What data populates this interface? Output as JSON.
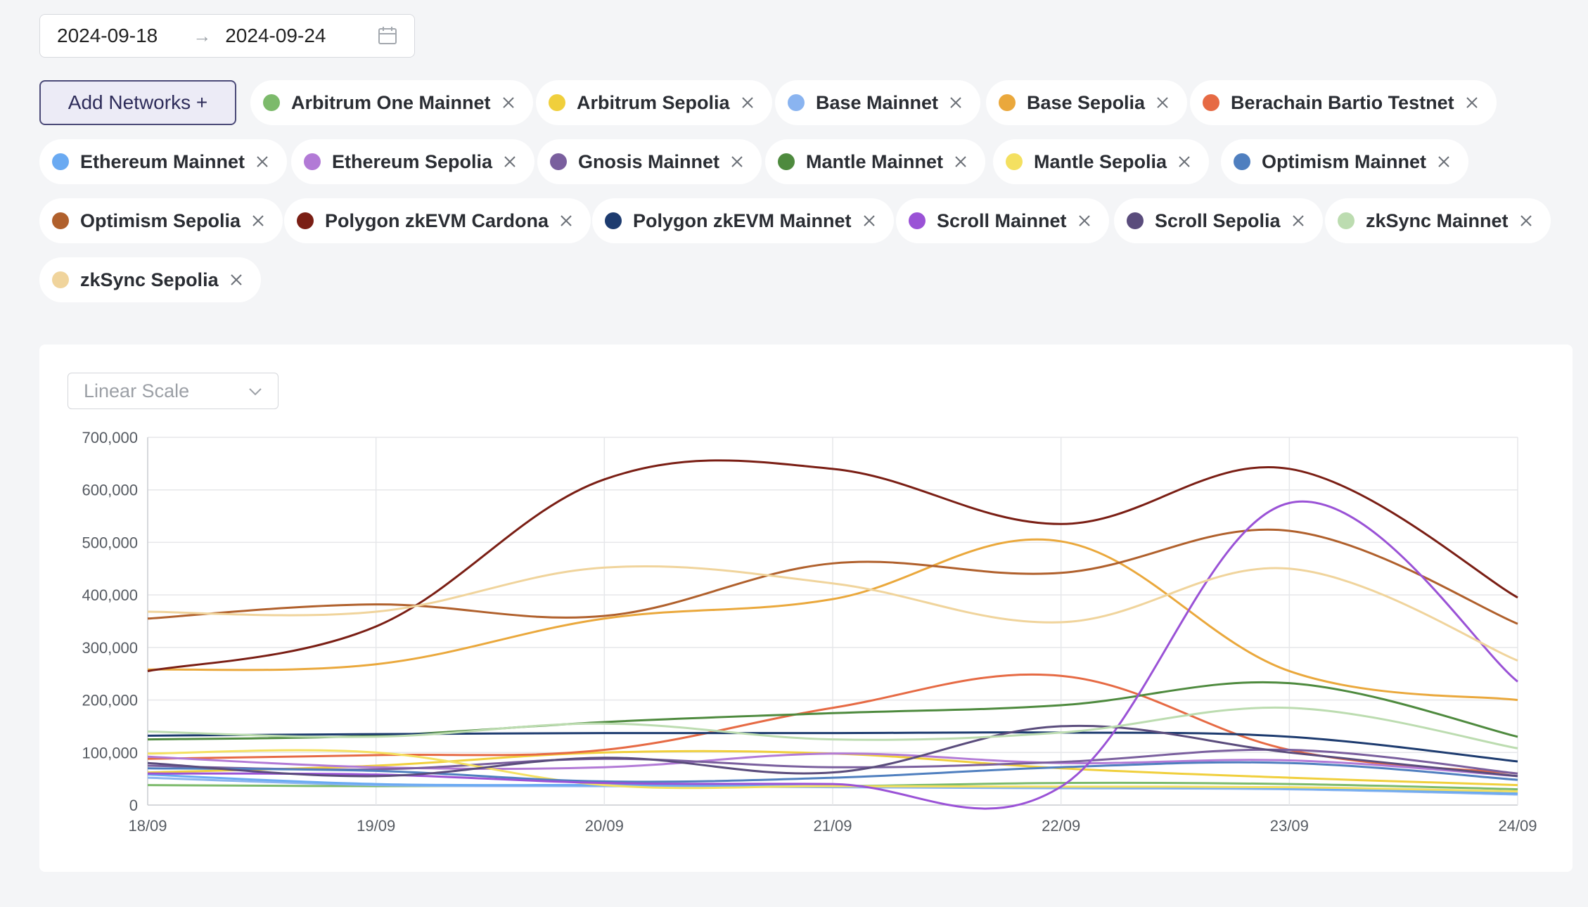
{
  "date_range": {
    "start": "2024-09-18",
    "end": "2024-09-24"
  },
  "add_networks_label": "Add Networks +",
  "networks": [
    {
      "name": "Arbitrum One Mainnet",
      "color": "#7cba6b"
    },
    {
      "name": "Arbitrum Sepolia",
      "color": "#f0cf3c"
    },
    {
      "name": "Base Mainnet",
      "color": "#8ab4f0"
    },
    {
      "name": "Base Sepolia",
      "color": "#eaa83c"
    },
    {
      "name": "Berachain Bartio Testnet",
      "color": "#e66a44"
    },
    {
      "name": "Ethereum Mainnet",
      "color": "#6aaaf2"
    },
    {
      "name": "Ethereum Sepolia",
      "color": "#b27ad6"
    },
    {
      "name": "Gnosis Mainnet",
      "color": "#7a5f9e"
    },
    {
      "name": "Mantle Mainnet",
      "color": "#4e8a3e"
    },
    {
      "name": "Mantle Sepolia",
      "color": "#f4e060"
    },
    {
      "name": "Optimism Mainnet",
      "color": "#4f7fbf"
    },
    {
      "name": "Optimism Sepolia",
      "color": "#b0602c"
    },
    {
      "name": "Polygon zkEVM Cardona",
      "color": "#7a1e14"
    },
    {
      "name": "Polygon zkEVM Mainnet",
      "color": "#1d3b6f"
    },
    {
      "name": "Scroll Mainnet",
      "color": "#9a52d6"
    },
    {
      "name": "Scroll Sepolia",
      "color": "#5a4c7c"
    },
    {
      "name": "zkSync Mainnet",
      "color": "#bcdcb0"
    },
    {
      "name": "zkSync Sepolia",
      "color": "#f0d49c"
    }
  ],
  "scale_select": {
    "value": "Linear Scale"
  },
  "chart_data": {
    "type": "line",
    "categories": [
      "18/09",
      "19/09",
      "20/09",
      "21/09",
      "22/09",
      "23/09",
      "24/09"
    ],
    "ylim": [
      0,
      700000
    ],
    "yticks": [
      "0",
      "100,000",
      "200,000",
      "300,000",
      "400,000",
      "500,000",
      "600,000",
      "700,000"
    ],
    "grid": true,
    "series": [
      {
        "name": "Arbitrum One Mainnet",
        "color": "#7cba6b",
        "values": [
          38000,
          36000,
          37000,
          36000,
          42000,
          40000,
          30000
        ]
      },
      {
        "name": "Arbitrum Sepolia",
        "color": "#f0cf3c",
        "values": [
          62000,
          75000,
          100000,
          98000,
          70000,
          52000,
          38000
        ]
      },
      {
        "name": "Base Mainnet",
        "color": "#8ab4f0",
        "values": [
          52000,
          38000,
          36000,
          34000,
          32000,
          30000,
          20000
        ]
      },
      {
        "name": "Base Sepolia",
        "color": "#eaa83c",
        "values": [
          258000,
          268000,
          355000,
          392000,
          502000,
          255000,
          200000
        ]
      },
      {
        "name": "Berachain Bartio Testnet",
        "color": "#e66a44",
        "values": [
          88000,
          95000,
          105000,
          185000,
          246000,
          105000,
          60000
        ]
      },
      {
        "name": "Ethereum Mainnet",
        "color": "#6aaaf2",
        "values": [
          58000,
          40000,
          38000,
          36000,
          34000,
          32000,
          22000
        ]
      },
      {
        "name": "Ethereum Sepolia",
        "color": "#b27ad6",
        "values": [
          92000,
          72000,
          72000,
          98000,
          80000,
          85000,
          55000
        ]
      },
      {
        "name": "Gnosis Mainnet",
        "color": "#7a5f9e",
        "values": [
          75000,
          68000,
          88000,
          72000,
          82000,
          105000,
          60000
        ]
      },
      {
        "name": "Mantle Mainnet",
        "color": "#4e8a3e",
        "values": [
          125000,
          132000,
          158000,
          175000,
          190000,
          232000,
          130000
        ]
      },
      {
        "name": "Mantle Sepolia",
        "color": "#f4e060",
        "values": [
          98000,
          100000,
          38000,
          36000,
          35000,
          34000,
          26000
        ]
      },
      {
        "name": "Optimism Mainnet",
        "color": "#4f7fbf",
        "values": [
          70000,
          65000,
          45000,
          52000,
          72000,
          80000,
          48000
        ]
      },
      {
        "name": "Optimism Sepolia",
        "color": "#b0602c",
        "values": [
          355000,
          382000,
          360000,
          460000,
          442000,
          522000,
          345000
        ]
      },
      {
        "name": "Polygon zkEVM Cardona",
        "color": "#7a1e14",
        "values": [
          255000,
          340000,
          620000,
          640000,
          535000,
          640000,
          395000
        ]
      },
      {
        "name": "Polygon zkEVM Mainnet",
        "color": "#1d3b6f",
        "values": [
          132000,
          135000,
          137000,
          137000,
          138000,
          130000,
          83000
        ]
      },
      {
        "name": "Scroll Mainnet",
        "color": "#9a52d6",
        "values": [
          60000,
          58000,
          42000,
          40000,
          35000,
          575000,
          235000
        ]
      },
      {
        "name": "Scroll Sepolia",
        "color": "#5a4c7c",
        "values": [
          80000,
          55000,
          90000,
          62000,
          150000,
          100000,
          55000
        ]
      },
      {
        "name": "zkSync Mainnet",
        "color": "#bcdcb0",
        "values": [
          140000,
          130000,
          155000,
          125000,
          138000,
          185000,
          108000
        ]
      },
      {
        "name": "zkSync Sepolia",
        "color": "#f0d49c",
        "values": [
          368000,
          368000,
          452000,
          422000,
          348000,
          450000,
          275000
        ]
      }
    ]
  }
}
